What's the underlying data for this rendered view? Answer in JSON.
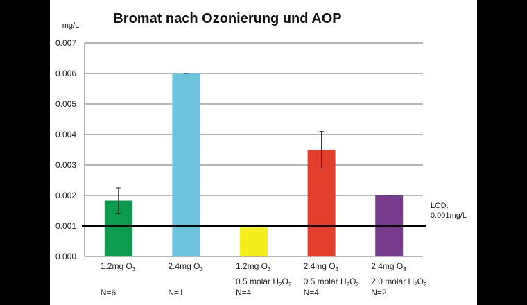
{
  "chart_data": {
    "type": "bar",
    "title": "Bromat nach Ozonierung und AOP",
    "ylabel": "mg/L",
    "ylim": [
      0,
      0.007
    ],
    "yticks": [
      "0.000",
      "0.001",
      "0.002",
      "0.003",
      "0.004",
      "0.005",
      "0.006",
      "0.007"
    ],
    "grid": true,
    "categories": [
      {
        "line1": "1.2mg O",
        "line1_sub": "3",
        "line2": "",
        "line2_sub": "",
        "line2_end": "",
        "n": "N=6"
      },
      {
        "line1": "2.4mg O",
        "line1_sub": "3",
        "line2": "",
        "line2_sub": "",
        "line2_end": "",
        "n": "N=1"
      },
      {
        "line1": "1.2mg O",
        "line1_sub": "3",
        "line2": "0.5 molar H",
        "line2_sub": "2",
        "line2_mid": "O",
        "line2_end": "2",
        "n": "N=4"
      },
      {
        "line1": "2.4mg O",
        "line1_sub": "3",
        "line2": "0.5 molar H",
        "line2_sub": "2",
        "line2_mid": "O",
        "line2_end": "2",
        "n": "N=4"
      },
      {
        "line1": "2.4mg O",
        "line1_sub": "3",
        "line2": "2.0 molar H",
        "line2_sub": "2",
        "line2_mid": "O",
        "line2_end": "2",
        "n": "N=2"
      }
    ],
    "values": [
      0.00183,
      0.006,
      0.00095,
      0.0035,
      0.002
    ],
    "error_low": [
      0.00142,
      0.006,
      null,
      0.0029,
      0.002
    ],
    "error_high": [
      0.00225,
      0.006,
      null,
      0.0041,
      0.002
    ],
    "colors": [
      "#0e9b4f",
      "#6ec3dc",
      "#f6ee1c",
      "#e23f2c",
      "#763b8a"
    ],
    "reference_line": {
      "value": 0.001,
      "label_line1": "LOD:",
      "label_line2": "0.001mg/L",
      "color": "#000000"
    }
  }
}
